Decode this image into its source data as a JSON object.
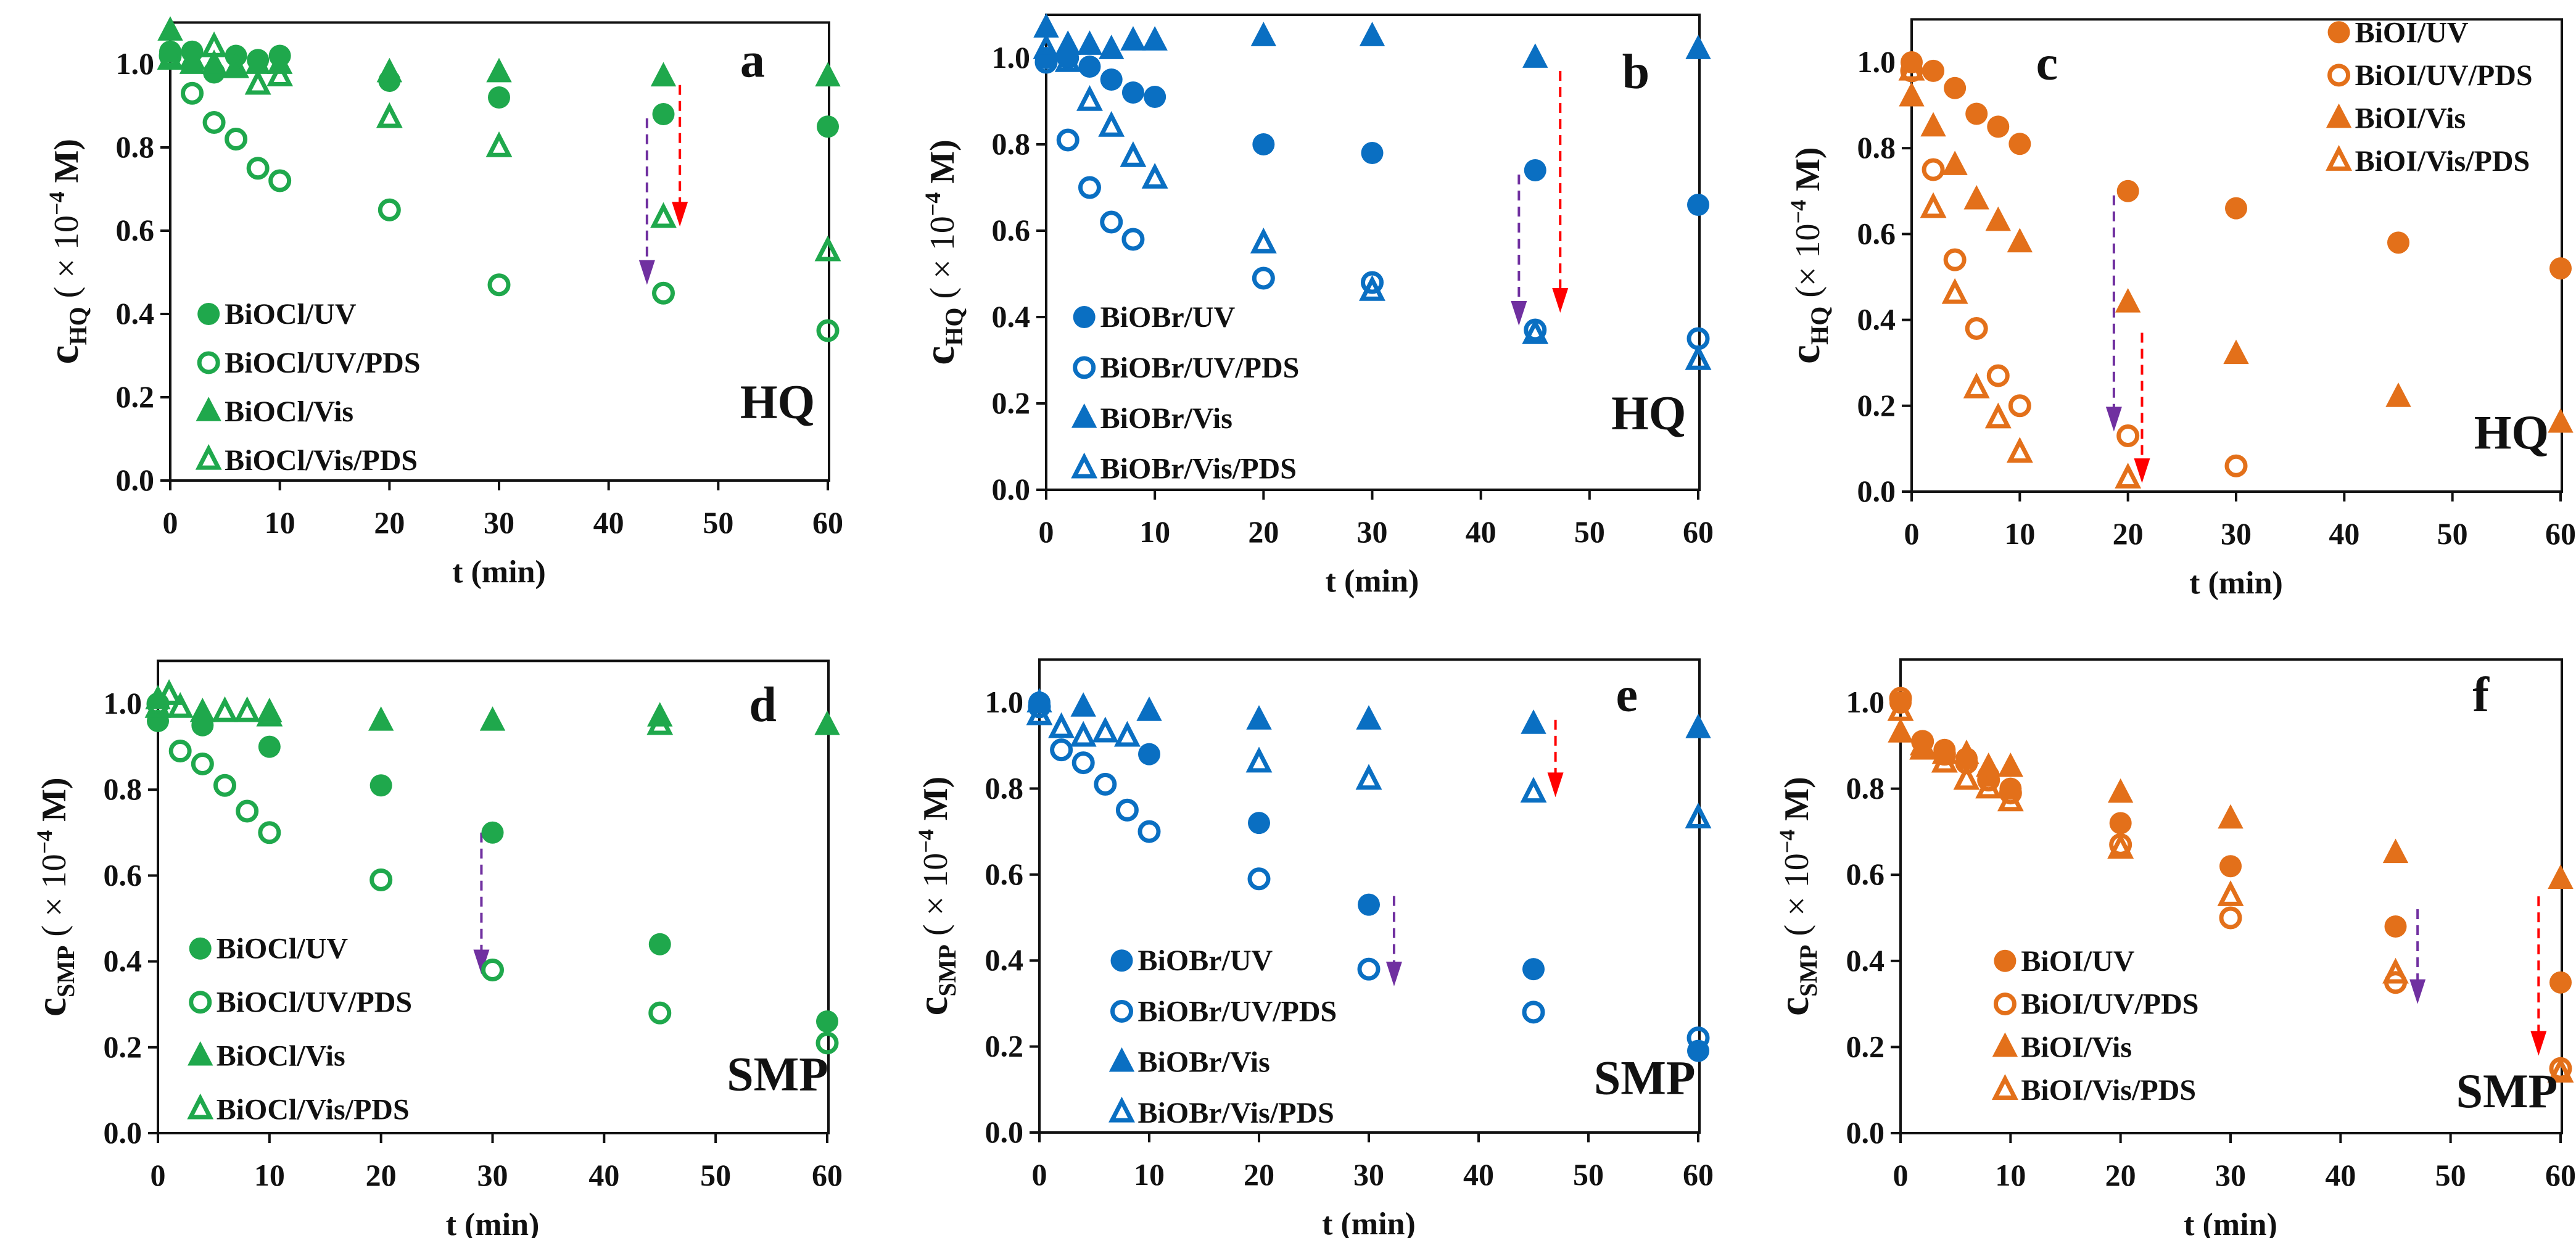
{
  "colors": {
    "BiOCl": "#1fa84c",
    "BiOBr": "#0a6fc2",
    "BiOI": "#e3701a",
    "arrow_uv": "#7030a0",
    "arrow_vis": "#ff0000",
    "axis": "#111111"
  },
  "chart_data": [
    {
      "type": "scatter",
      "panel_letter": "a",
      "compound": "HQ",
      "xlabel": "t (min)",
      "ylabel": {
        "var": "c",
        "sub": "HQ",
        "pre": " ( × 10",
        "exp": "−4",
        "post": " M)"
      },
      "xlim": [
        0,
        60
      ],
      "ylim": [
        0,
        1.1
      ],
      "xticks": [
        "0",
        "10",
        "20",
        "30",
        "40",
        "50",
        "60"
      ],
      "yticks": [
        "0.0",
        "0.2",
        "0.4",
        "0.6",
        "0.8",
        "1.0"
      ],
      "catalyst": "BiOCl",
      "legend": "bottom-left",
      "series": [
        {
          "name": "BiOCl/UV",
          "marker": "filled-circle",
          "x": [
            0,
            2,
            4,
            6,
            8,
            10,
            20,
            30,
            45,
            60
          ],
          "y": [
            1.03,
            1.03,
            0.98,
            1.02,
            1.01,
            1.02,
            0.96,
            0.92,
            0.88,
            0.85
          ]
        },
        {
          "name": "BiOCl/UV/PDS",
          "marker": "open-circle",
          "x": [
            0,
            2,
            4,
            6,
            8,
            10,
            20,
            30,
            45,
            60
          ],
          "y": [
            1.02,
            0.93,
            0.86,
            0.82,
            0.75,
            0.72,
            0.65,
            0.47,
            0.45,
            0.36
          ]
        },
        {
          "name": "BiOCl/Vis",
          "marker": "filled-triangle",
          "x": [
            0,
            2,
            4,
            6,
            8,
            10,
            20,
            30,
            45,
            60
          ],
          "y": [
            1.08,
            1.0,
            1.0,
            0.99,
            1.0,
            1.0,
            0.98,
            0.98,
            0.97,
            0.97
          ]
        },
        {
          "name": "BiOCl/Vis/PDS",
          "marker": "open-triangle",
          "x": [
            0,
            2,
            4,
            6,
            8,
            10,
            20,
            30,
            45,
            60
          ],
          "y": [
            1.01,
            1.01,
            1.04,
            0.99,
            0.95,
            0.97,
            0.87,
            0.8,
            0.63,
            0.55
          ]
        }
      ],
      "arrows": [
        {
          "color": "arrow_uv",
          "x": 43.5,
          "from": 0.87,
          "to": 0.47
        },
        {
          "color": "arrow_vis",
          "x": 46.5,
          "from": 0.95,
          "to": 0.61
        }
      ]
    },
    {
      "type": "scatter",
      "panel_letter": "b",
      "compound": "HQ",
      "xlabel": "t (min)",
      "ylabel": {
        "var": "c",
        "sub": "HQ",
        "pre": " ( × 10",
        "exp": "−4",
        "post": " M)"
      },
      "xlim": [
        0,
        60
      ],
      "ylim": [
        0,
        1.1
      ],
      "xticks": [
        "0",
        "10",
        "20",
        "30",
        "40",
        "50",
        "60"
      ],
      "yticks": [
        "0.0",
        "0.2",
        "0.4",
        "0.6",
        "0.8",
        "1.0"
      ],
      "catalyst": "BiOBr",
      "legend": "bottom-left",
      "series": [
        {
          "name": "BiOBr/UV",
          "marker": "filled-circle",
          "x": [
            0,
            2,
            4,
            6,
            8,
            10,
            20,
            30,
            45,
            60
          ],
          "y": [
            1.0,
            1.0,
            0.98,
            0.95,
            0.92,
            0.91,
            0.8,
            0.78,
            0.74,
            0.66
          ]
        },
        {
          "name": "BiOBr/UV/PDS",
          "marker": "open-circle",
          "x": [
            0,
            2,
            4,
            6,
            8,
            20,
            30,
            45,
            60
          ],
          "y": [
            0.99,
            0.81,
            0.7,
            0.62,
            0.58,
            0.49,
            0.48,
            0.37,
            0.35
          ]
        },
        {
          "name": "BiOBr/Vis",
          "marker": "filled-triangle",
          "x": [
            0,
            2,
            4,
            6,
            8,
            10,
            20,
            30,
            45,
            60
          ],
          "y": [
            1.07,
            1.03,
            1.03,
            1.02,
            1.04,
            1.04,
            1.05,
            1.05,
            1.0,
            1.02
          ]
        },
        {
          "name": "BiOBr/Vis/PDS",
          "marker": "open-triangle",
          "x": [
            0,
            2,
            4,
            6,
            8,
            10,
            20,
            30,
            45,
            60
          ],
          "y": [
            1.02,
            0.99,
            0.9,
            0.84,
            0.77,
            0.72,
            0.57,
            0.46,
            0.36,
            0.3
          ]
        }
      ],
      "arrows": [
        {
          "color": "arrow_uv",
          "x": 43.5,
          "from": 0.73,
          "to": 0.38
        },
        {
          "color": "arrow_vis",
          "x": 47.3,
          "from": 0.97,
          "to": 0.41
        }
      ]
    },
    {
      "type": "scatter",
      "panel_letter": "c",
      "compound": "HQ",
      "xlabel": "t (min)",
      "ylabel": {
        "var": "c",
        "sub": "HQ",
        "pre": " (× 10",
        "exp": "−4",
        "post": " M)"
      },
      "xlim": [
        0,
        60
      ],
      "ylim": [
        0,
        1.1
      ],
      "xticks": [
        "0",
        "10",
        "20",
        "30",
        "40",
        "50",
        "60"
      ],
      "yticks": [
        "0.0",
        "0.2",
        "0.4",
        "0.6",
        "0.8",
        "1.0"
      ],
      "catalyst": "BiOI",
      "legend": "top-right",
      "series": [
        {
          "name": "BiOI/UV",
          "marker": "filled-circle",
          "x": [
            0,
            2,
            4,
            6,
            8,
            10,
            20,
            30,
            45,
            60
          ],
          "y": [
            1.0,
            0.98,
            0.94,
            0.88,
            0.85,
            0.81,
            0.7,
            0.66,
            0.58,
            0.52
          ]
        },
        {
          "name": "BiOI/UV/PDS",
          "marker": "open-circle",
          "x": [
            0,
            2,
            4,
            6,
            8,
            10,
            20,
            30
          ],
          "y": [
            0.98,
            0.75,
            0.54,
            0.38,
            0.27,
            0.2,
            0.13,
            0.06
          ]
        },
        {
          "name": "BiOI/Vis",
          "marker": "filled-triangle",
          "x": [
            0,
            2,
            4,
            6,
            8,
            10,
            20,
            30,
            45,
            60
          ],
          "y": [
            0.92,
            0.85,
            0.76,
            0.68,
            0.63,
            0.58,
            0.44,
            0.32,
            0.22,
            0.16
          ]
        },
        {
          "name": "BiOI/Vis/PDS",
          "marker": "open-triangle",
          "x": [
            0,
            2,
            4,
            6,
            8,
            10,
            20
          ],
          "y": [
            0.98,
            0.66,
            0.46,
            0.24,
            0.17,
            0.09,
            0.03
          ]
        }
      ],
      "arrows": [
        {
          "color": "arrow_uv",
          "x": 18.7,
          "from": 0.69,
          "to": 0.14
        },
        {
          "color": "arrow_vis",
          "x": 21.3,
          "from": 0.37,
          "to": 0.02
        }
      ]
    },
    {
      "type": "scatter",
      "panel_letter": "d",
      "compound": "SMP",
      "xlabel": "t (min)",
      "ylabel": {
        "var": "c",
        "sub": "SMP",
        "pre": " ( × 10",
        "exp": "−4",
        "post": " M)"
      },
      "xlim": [
        0,
        60
      ],
      "ylim": [
        0,
        1.1
      ],
      "xticks": [
        "0",
        "10",
        "20",
        "30",
        "40",
        "50",
        "60"
      ],
      "yticks": [
        "0.0",
        "0.2",
        "0.4",
        "0.6",
        "0.8",
        "1.0"
      ],
      "catalyst": "BiOCl",
      "legend": "bottom-left",
      "series": [
        {
          "name": "BiOCl/UV",
          "marker": "filled-circle",
          "x": [
            0,
            4,
            10,
            20,
            30,
            45,
            60
          ],
          "y": [
            0.96,
            0.95,
            0.9,
            0.81,
            0.7,
            0.44,
            0.26
          ]
        },
        {
          "name": "BiOCl/UV/PDS",
          "marker": "open-circle",
          "x": [
            0,
            2,
            4,
            6,
            8,
            10,
            20,
            30,
            45,
            60
          ],
          "y": [
            1.0,
            0.89,
            0.86,
            0.81,
            0.75,
            0.7,
            0.59,
            0.38,
            0.28,
            0.21
          ]
        },
        {
          "name": "BiOCl/Vis",
          "marker": "filled-triangle",
          "x": [
            0,
            4,
            10,
            20,
            30,
            45,
            60
          ],
          "y": [
            1.01,
            0.98,
            0.98,
            0.96,
            0.96,
            0.97,
            0.95
          ]
        },
        {
          "name": "BiOCl/Vis/PDS",
          "marker": "open-triangle",
          "x": [
            0,
            1,
            2,
            6,
            8,
            10,
            45
          ],
          "y": [
            0.99,
            1.02,
            0.99,
            0.98,
            0.98,
            0.97,
            0.95
          ]
        }
      ],
      "arrows": [
        {
          "color": "arrow_uv",
          "x": 29,
          "from": 0.7,
          "to": 0.37
        }
      ]
    },
    {
      "type": "scatter",
      "panel_letter": "e",
      "compound": "SMP",
      "xlabel": "t (min)",
      "ylabel": {
        "var": "c",
        "sub": "SMP",
        "pre": " ( × 10",
        "exp": "−4",
        "post": " M)"
      },
      "xlim": [
        0,
        60
      ],
      "ylim": [
        0,
        1.1
      ],
      "xticks": [
        "0",
        "10",
        "20",
        "30",
        "40",
        "50",
        "60"
      ],
      "yticks": [
        "0.0",
        "0.2",
        "0.4",
        "0.6",
        "0.8",
        "1.0"
      ],
      "catalyst": "BiOBr",
      "legend": "bottom-left",
      "series": [
        {
          "name": "BiOBr/UV",
          "marker": "filled-circle",
          "x": [
            0,
            10,
            20,
            30,
            45,
            60
          ],
          "y": [
            1.0,
            0.88,
            0.72,
            0.53,
            0.38,
            0.19
          ]
        },
        {
          "name": "BiOBr/UV/PDS",
          "marker": "open-circle",
          "x": [
            0,
            2,
            4,
            6,
            8,
            10,
            20,
            30,
            45,
            60
          ],
          "y": [
            0.99,
            0.89,
            0.86,
            0.81,
            0.75,
            0.7,
            0.59,
            0.38,
            0.28,
            0.22
          ]
        },
        {
          "name": "BiOBr/Vis",
          "marker": "filled-triangle",
          "x": [
            0,
            4,
            10,
            20,
            30,
            45,
            60
          ],
          "y": [
            1.0,
            0.99,
            0.98,
            0.96,
            0.96,
            0.95,
            0.94
          ]
        },
        {
          "name": "BiOBr/Vis/PDS",
          "marker": "open-triangle",
          "x": [
            0,
            2,
            4,
            6,
            8,
            20,
            30,
            45,
            60
          ],
          "y": [
            0.97,
            0.94,
            0.92,
            0.93,
            0.92,
            0.86,
            0.82,
            0.79,
            0.73
          ]
        }
      ],
      "arrows": [
        {
          "color": "arrow_uv",
          "x": 32.3,
          "from": 0.55,
          "to": 0.34
        },
        {
          "color": "arrow_vis",
          "x": 47,
          "from": 0.96,
          "to": 0.78
        }
      ]
    },
    {
      "type": "scatter",
      "panel_letter": "f",
      "compound": "SMP",
      "xlabel": "t (min)",
      "ylabel": {
        "var": "c",
        "sub": "SMP",
        "pre": " ( × 10",
        "exp": "−4",
        "post": " M)"
      },
      "xlim": [
        0,
        60
      ],
      "ylim": [
        0,
        1.1
      ],
      "xticks": [
        "0",
        "10",
        "20",
        "30",
        "40",
        "50",
        "60"
      ],
      "yticks": [
        "0.0",
        "0.2",
        "0.4",
        "0.6",
        "0.8",
        "1.0"
      ],
      "catalyst": "BiOI",
      "legend": "bottom-left",
      "series": [
        {
          "name": "BiOI/UV",
          "marker": "filled-circle",
          "x": [
            0,
            2,
            4,
            6,
            8,
            10,
            20,
            30,
            45,
            60
          ],
          "y": [
            1.0,
            0.91,
            0.89,
            0.87,
            0.83,
            0.8,
            0.72,
            0.62,
            0.48,
            0.35
          ]
        },
        {
          "name": "BiOI/UV/PDS",
          "marker": "open-circle",
          "x": [
            0,
            2,
            4,
            6,
            8,
            10,
            20,
            30,
            45,
            60
          ],
          "y": [
            1.01,
            0.91,
            0.88,
            0.86,
            0.82,
            0.79,
            0.67,
            0.5,
            0.35,
            0.15
          ]
        },
        {
          "name": "BiOI/Vis",
          "marker": "filled-triangle",
          "x": [
            0,
            2,
            4,
            6,
            8,
            10,
            20,
            30,
            45,
            60
          ],
          "y": [
            0.93,
            0.9,
            0.88,
            0.88,
            0.85,
            0.85,
            0.79,
            0.73,
            0.65,
            0.59
          ]
        },
        {
          "name": "BiOI/Vis/PDS",
          "marker": "open-triangle",
          "x": [
            0,
            2,
            4,
            6,
            8,
            10,
            20,
            30,
            45,
            60
          ],
          "y": [
            0.98,
            0.89,
            0.86,
            0.82,
            0.8,
            0.77,
            0.66,
            0.55,
            0.37,
            0.14
          ]
        }
      ],
      "arrows": [
        {
          "color": "arrow_uv",
          "x": 47,
          "from": 0.52,
          "to": 0.3
        },
        {
          "color": "arrow_vis",
          "x": 58,
          "from": 0.55,
          "to": 0.18
        }
      ]
    }
  ]
}
